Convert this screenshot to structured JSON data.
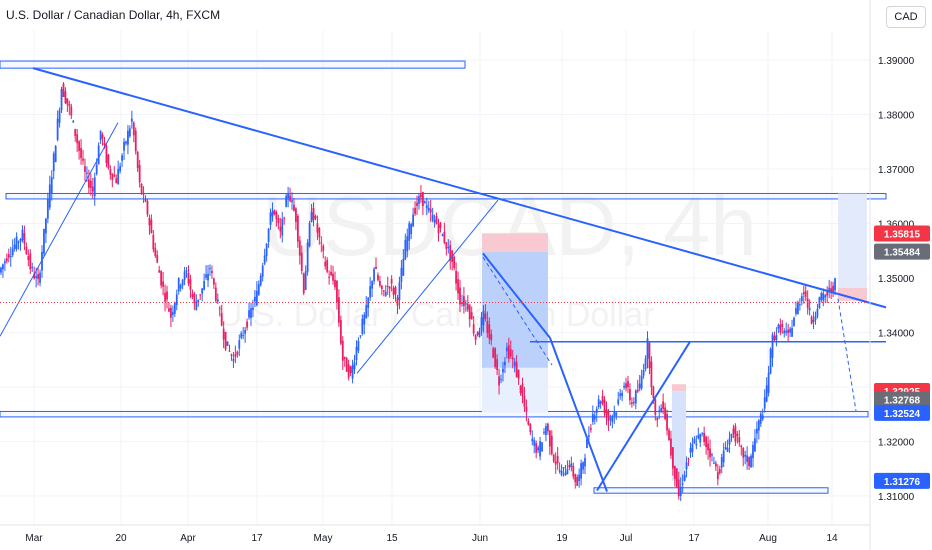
{
  "header": {
    "title": "U.S. Dollar / Canadian Dollar, 4h, FXCM"
  },
  "currency_button": "CAD",
  "watermark": {
    "symbol": "USDCAD, 4h",
    "description": "U.S. Dollar / Canadian Dollar"
  },
  "colors": {
    "up": "#2962ff",
    "down": "#e91e63",
    "drawing": "#2962ff",
    "zone_fill": "#e3ecfd",
    "target_fill": "#bbd0fb",
    "stop_fill": "#f9c9d1",
    "price_line": "#f23645",
    "grid": "#f0f3fa",
    "axis_text": "#131722"
  },
  "chart_data": {
    "type": "candlestick",
    "symbol": "USDCAD",
    "timeframe": "4h",
    "source": "FXCM",
    "quote_currency": "CAD",
    "ylim": [
      1.3065,
      1.3955
    ],
    "grid": true,
    "yticks": [
      "1.39000",
      "1.38000",
      "1.37000",
      "1.36000",
      "1.35000",
      "1.34000",
      "1.33000",
      "1.32000",
      "1.31000"
    ],
    "xticks": [
      "Mar",
      "20",
      "Apr",
      "17",
      "May",
      "15",
      "Jun",
      "19",
      "Jul",
      "17",
      "Aug",
      "14"
    ],
    "price_path": [
      [
        0,
        1.351
      ],
      [
        1,
        1.354
      ],
      [
        2,
        1.356
      ],
      [
        3,
        1.358
      ],
      [
        4,
        1.352
      ],
      [
        5,
        1.349
      ],
      [
        6,
        1.361
      ],
      [
        7,
        1.372
      ],
      [
        8,
        1.385
      ],
      [
        9,
        1.381
      ],
      [
        10,
        1.375
      ],
      [
        11,
        1.369
      ],
      [
        12,
        1.366
      ],
      [
        13,
        1.377
      ],
      [
        14,
        1.37
      ],
      [
        15,
        1.368
      ],
      [
        16,
        1.374
      ],
      [
        17,
        1.379
      ],
      [
        18,
        1.367
      ],
      [
        19,
        1.362
      ],
      [
        20,
        1.354
      ],
      [
        21,
        1.348
      ],
      [
        22,
        1.343
      ],
      [
        23,
        1.349
      ],
      [
        24,
        1.351
      ],
      [
        25,
        1.345
      ],
      [
        26,
        1.348
      ],
      [
        27,
        1.352
      ],
      [
        28,
        1.345
      ],
      [
        29,
        1.338
      ],
      [
        30,
        1.335
      ],
      [
        31,
        1.339
      ],
      [
        32,
        1.343
      ],
      [
        33,
        1.347
      ],
      [
        34,
        1.355
      ],
      [
        35,
        1.363
      ],
      [
        36,
        1.358
      ],
      [
        37,
        1.366
      ],
      [
        38,
        1.361
      ],
      [
        39,
        1.348
      ],
      [
        40,
        1.363
      ],
      [
        41,
        1.357
      ],
      [
        42,
        1.351
      ],
      [
        43,
        1.349
      ],
      [
        44,
        1.335
      ],
      [
        45,
        1.332
      ],
      [
        46,
        1.339
      ],
      [
        47,
        1.344
      ],
      [
        48,
        1.352
      ],
      [
        49,
        1.347
      ],
      [
        50,
        1.349
      ],
      [
        51,
        1.346
      ],
      [
        52,
        1.356
      ],
      [
        53,
        1.362
      ],
      [
        54,
        1.365
      ],
      [
        55,
        1.362
      ],
      [
        56,
        1.36
      ],
      [
        57,
        1.357
      ],
      [
        58,
        1.353
      ],
      [
        59,
        1.346
      ],
      [
        60,
        1.345
      ],
      [
        61,
        1.339
      ],
      [
        62,
        1.343
      ],
      [
        63,
        1.338
      ],
      [
        64,
        1.331
      ],
      [
        65,
        1.337
      ],
      [
        66,
        1.334
      ],
      [
        67,
        1.328
      ],
      [
        68,
        1.321
      ],
      [
        69,
        1.318
      ],
      [
        70,
        1.323
      ],
      [
        71,
        1.317
      ],
      [
        72,
        1.314
      ],
      [
        73,
        1.316
      ],
      [
        74,
        1.312
      ],
      [
        75,
        1.318
      ],
      [
        76,
        1.325
      ],
      [
        77,
        1.328
      ],
      [
        78,
        1.324
      ],
      [
        79,
        1.326
      ],
      [
        80,
        1.331
      ],
      [
        81,
        1.327
      ],
      [
        82,
        1.33
      ],
      [
        83,
        1.338
      ],
      [
        84,
        1.324
      ],
      [
        85,
        1.327
      ],
      [
        86,
        1.318
      ],
      [
        87,
        1.31
      ],
      [
        88,
        1.316
      ],
      [
        89,
        1.32
      ],
      [
        90,
        1.321
      ],
      [
        91,
        1.318
      ],
      [
        92,
        1.314
      ],
      [
        93,
        1.319
      ],
      [
        94,
        1.322
      ],
      [
        95,
        1.318
      ],
      [
        96,
        1.316
      ],
      [
        97,
        1.322
      ],
      [
        98,
        1.327
      ],
      [
        99,
        1.339
      ],
      [
        100,
        1.341
      ],
      [
        101,
        1.339
      ],
      [
        102,
        1.344
      ],
      [
        103,
        1.348
      ],
      [
        104,
        1.342
      ],
      [
        105,
        1.346
      ],
      [
        106,
        1.347
      ],
      [
        107,
        1.349
      ]
    ],
    "price_labels": [
      {
        "text": "1.35815",
        "role": "stop-loss",
        "color": "#f23645",
        "value": 1.35815
      },
      {
        "text": "1.35484",
        "role": "mark",
        "color": "#6a6d78",
        "value": 1.35484
      },
      {
        "text": "1.32925",
        "role": "mark",
        "color": "#f23645",
        "value": 1.32925
      },
      {
        "text": "1.32768",
        "role": "mark",
        "color": "#6a6d78",
        "value": 1.32768
      },
      {
        "text": "1.32524",
        "role": "target",
        "color": "#2962ff",
        "value": 1.32524
      },
      {
        "text": "1.31276",
        "role": "mark",
        "color": "#2962ff",
        "value": 1.31276
      }
    ],
    "current_price": 1.3455,
    "annotations": [
      {
        "kind": "resistance-zone",
        "from": 1.3885,
        "to": 1.3898
      },
      {
        "kind": "resistance-zone",
        "from": 1.3645,
        "to": 1.3655
      },
      {
        "kind": "support-zone",
        "from": 1.3245,
        "to": 1.3255
      },
      {
        "kind": "support-zone",
        "from": 1.3105,
        "to": 1.3115
      },
      {
        "kind": "descending-trendline",
        "from": 1.3885,
        "to": 1.3455
      },
      {
        "kind": "horizontal-line",
        "value": 1.3383
      },
      {
        "kind": "short-position",
        "entry": 1.3548,
        "stop": 1.3582,
        "target": 1.3253
      },
      {
        "kind": "short-position",
        "entry": 1.3458,
        "stop": 1.3482,
        "target": 1.3253
      }
    ]
  }
}
